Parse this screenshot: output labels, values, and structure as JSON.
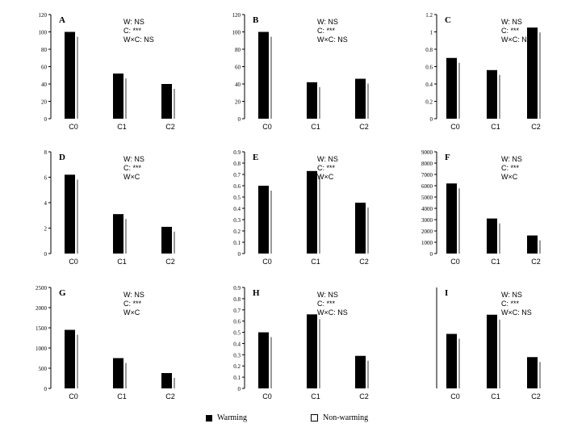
{
  "chart_data": [
    {
      "type": "bar",
      "panel_label": "A",
      "categories": [
        "C0",
        "C1",
        "C2"
      ],
      "series": [
        {
          "name": "Warming",
          "values": [
            100,
            52,
            40
          ]
        }
      ],
      "ylim": [
        0,
        120
      ],
      "yticks": [
        0,
        20,
        40,
        60,
        80,
        100,
        120
      ],
      "ylabel": "",
      "stats": [
        "W: NS",
        "C: ***",
        "W×C: NS"
      ]
    },
    {
      "type": "bar",
      "panel_label": "B",
      "categories": [
        "C0",
        "C1",
        "C2"
      ],
      "series": [
        {
          "name": "Warming",
          "values": [
            100,
            42,
            46
          ]
        }
      ],
      "ylim": [
        0,
        120
      ],
      "yticks": [
        0,
        20,
        40,
        60,
        80,
        100,
        120
      ],
      "ylabel": "",
      "stats": [
        "W: NS",
        "C: ***",
        "W×C: NS"
      ]
    },
    {
      "type": "bar",
      "panel_label": "C",
      "categories": [
        "C0",
        "C1",
        "C2"
      ],
      "series": [
        {
          "name": "Warming",
          "values": [
            0.7,
            0.56,
            1.05
          ]
        }
      ],
      "ylim": [
        0,
        1.2
      ],
      "yticks": [
        0,
        0.2,
        0.4,
        0.6,
        0.8,
        1.0,
        1.2
      ],
      "ylabel": "",
      "stats": [
        "W: NS",
        "C: ***",
        "W×C: NS"
      ]
    },
    {
      "type": "bar",
      "panel_label": "D",
      "categories": [
        "C0",
        "C1",
        "C2"
      ],
      "series": [
        {
          "name": "Warming",
          "values": [
            6.2,
            3.1,
            2.1
          ]
        }
      ],
      "ylim": [
        0,
        8
      ],
      "yticks": [
        0,
        2,
        4,
        6,
        8
      ],
      "ylabel": "",
      "stats": [
        "W: NS",
        "C: ***",
        "W×C"
      ]
    },
    {
      "type": "bar",
      "panel_label": "E",
      "categories": [
        "C0",
        "C1",
        "C2"
      ],
      "series": [
        {
          "name": "Warming",
          "values": [
            0.6,
            0.73,
            0.45
          ]
        }
      ],
      "ylim": [
        0,
        0.9
      ],
      "yticks": [
        0,
        0.1,
        0.2,
        0.3,
        0.4,
        0.5,
        0.6,
        0.7,
        0.8,
        0.9
      ],
      "ylabel": "",
      "stats": [
        "W: NS",
        "C: ***",
        "W×C"
      ]
    },
    {
      "type": "bar",
      "panel_label": "F",
      "categories": [
        "C0",
        "C1",
        "C2"
      ],
      "series": [
        {
          "name": "Warming",
          "values": [
            6200,
            3100,
            1600
          ]
        }
      ],
      "ylim": [
        0,
        9000
      ],
      "yticks": [
        0,
        1000,
        2000,
        3000,
        4000,
        5000,
        6000,
        7000,
        8000,
        9000
      ],
      "ylabel": "",
      "stats": [
        "W: NS",
        "C: ***",
        "W×C"
      ]
    },
    {
      "type": "bar",
      "panel_label": "G",
      "categories": [
        "C0",
        "C1",
        "C2"
      ],
      "series": [
        {
          "name": "Warming",
          "values": [
            1450,
            750,
            380
          ]
        }
      ],
      "ylim": [
        0,
        2500
      ],
      "yticks": [
        0,
        500,
        1000,
        1500,
        2000,
        2500
      ],
      "ylabel": "",
      "stats": [
        "W: NS",
        "C: ***",
        "W×C"
      ]
    },
    {
      "type": "bar",
      "panel_label": "H",
      "categories": [
        "C0",
        "C1",
        "C2"
      ],
      "series": [
        {
          "name": "Warming",
          "values": [
            0.5,
            0.66,
            0.29
          ]
        }
      ],
      "ylim": [
        0,
        0.9
      ],
      "yticks": [
        0,
        0.1,
        0.2,
        0.3,
        0.4,
        0.5,
        0.6,
        0.7,
        0.8,
        0.9
      ],
      "ylabel": "",
      "stats": [
        "W: NS",
        "C: ***",
        "W×C: NS"
      ]
    },
    {
      "type": "bar",
      "panel_label": "I",
      "categories": [
        "C0",
        "C1",
        "C2"
      ],
      "series": [
        {
          "name": "Warming",
          "values": [
            0.54,
            0.73,
            0.31
          ]
        }
      ],
      "ylim": [
        0,
        1.0
      ],
      "yticks": [],
      "ylabel": "",
      "stats": [
        "W: NS",
        "C: ***",
        "W×C: NS"
      ]
    }
  ],
  "legend": {
    "items": [
      {
        "label": "Warming",
        "swatch": "#000000"
      },
      {
        "label": "Non-warming",
        "swatch": "#ffffff"
      }
    ]
  }
}
